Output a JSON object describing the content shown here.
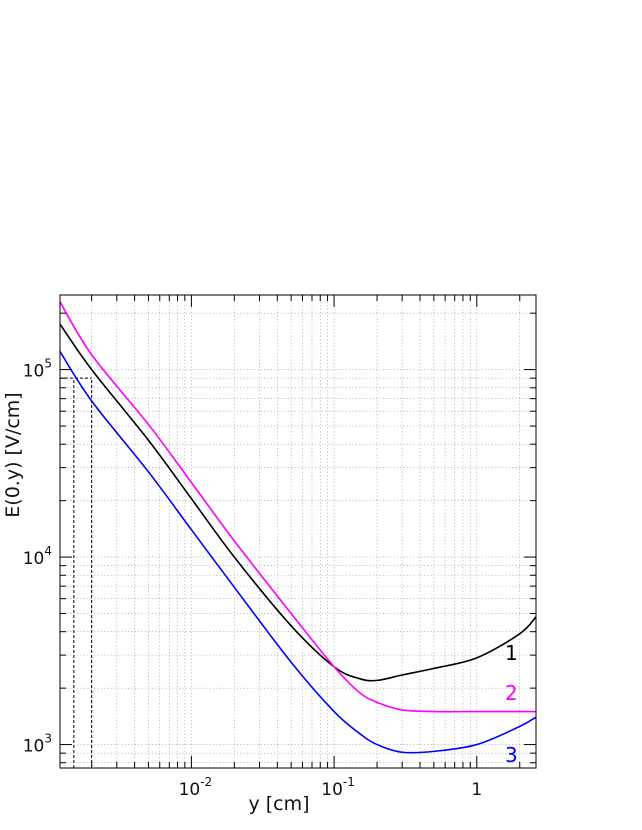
{
  "chart_data": {
    "type": "line",
    "title": "",
    "xlabel": "y [cm]",
    "ylabel": "E(0.y) [V/cm]",
    "xscale": "log",
    "yscale": "log",
    "xlim": [
      0.0012,
      2.6
    ],
    "ylim": [
      750,
      250000
    ],
    "grid": true,
    "x_ticks": [
      {
        "value": 0.01,
        "base": "10",
        "exp": "-2"
      },
      {
        "value": 0.1,
        "base": "10",
        "exp": "-1"
      },
      {
        "value": 1,
        "base": "1",
        "exp": ""
      }
    ],
    "y_ticks": [
      {
        "value": 1000,
        "base": "10",
        "exp": "3"
      },
      {
        "value": 10000,
        "base": "10",
        "exp": "4"
      },
      {
        "value": 100000,
        "base": "10",
        "exp": "5"
      }
    ],
    "series": [
      {
        "name": "1",
        "color": "#000000",
        "x": [
          0.0012,
          0.002,
          0.005,
          0.01,
          0.02,
          0.05,
          0.1,
          0.15,
          0.2,
          0.3,
          0.5,
          1,
          2,
          2.6
        ],
        "y": [
          175000,
          100000,
          42000,
          20500,
          10000,
          4300,
          2600,
          2250,
          2200,
          2350,
          2550,
          2900,
          3900,
          4800
        ]
      },
      {
        "name": "2",
        "color": "#ff00ff",
        "x": [
          0.0012,
          0.002,
          0.005,
          0.01,
          0.02,
          0.05,
          0.1,
          0.15,
          0.2,
          0.3,
          0.5,
          1,
          2,
          2.6
        ],
        "y": [
          230000,
          120000,
          51000,
          25000,
          12200,
          5000,
          2600,
          1900,
          1680,
          1530,
          1500,
          1500,
          1500,
          1500
        ]
      },
      {
        "name": "3",
        "color": "#0000ff",
        "x": [
          0.0012,
          0.002,
          0.005,
          0.01,
          0.02,
          0.05,
          0.1,
          0.15,
          0.2,
          0.3,
          0.5,
          1,
          2,
          2.6
        ],
        "y": [
          125000,
          68000,
          28500,
          14000,
          6900,
          2750,
          1500,
          1150,
          1000,
          910,
          920,
          1000,
          1250,
          1400
        ]
      }
    ],
    "reference_lines": [
      {
        "y": 90000,
        "x_from": 0.0012,
        "x_to": 0.002
      },
      {
        "x": 0.0015,
        "y_from": 750,
        "y_to": 90000
      },
      {
        "x": 0.002,
        "y_from": 750,
        "y_to": 90000
      }
    ]
  }
}
